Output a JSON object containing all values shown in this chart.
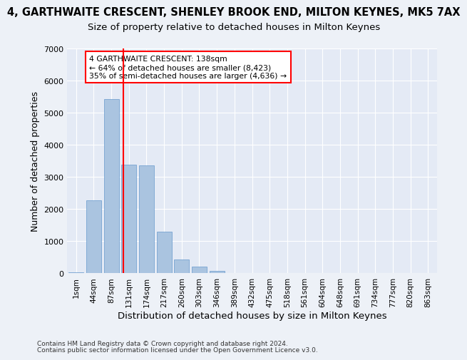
{
  "title": "4, GARTHWAITE CRESCENT, SHENLEY BROOK END, MILTON KEYNES, MK5 7AX",
  "subtitle": "Size of property relative to detached houses in Milton Keynes",
  "xlabel": "Distribution of detached houses by size in Milton Keynes",
  "ylabel": "Number of detached properties",
  "footnote1": "Contains HM Land Registry data © Crown copyright and database right 2024.",
  "footnote2": "Contains public sector information licensed under the Open Government Licence v3.0.",
  "bin_labels": [
    "1sqm",
    "44sqm",
    "87sqm",
    "131sqm",
    "174sqm",
    "217sqm",
    "260sqm",
    "303sqm",
    "346sqm",
    "389sqm",
    "432sqm",
    "475sqm",
    "518sqm",
    "561sqm",
    "604sqm",
    "648sqm",
    "691sqm",
    "734sqm",
    "777sqm",
    "820sqm",
    "863sqm"
  ],
  "bar_values": [
    30,
    2280,
    5430,
    3380,
    3350,
    1300,
    430,
    220,
    80,
    20,
    0,
    0,
    0,
    0,
    0,
    0,
    0,
    0,
    0,
    0,
    0
  ],
  "bar_color": "#aac4e0",
  "bar_edge_color": "#6699cc",
  "vline_position": 2.67,
  "vline_color": "red",
  "annotation_text_line1": "4 GARTHWAITE CRESCENT: 138sqm",
  "annotation_text_line2": "← 64% of detached houses are smaller (8,423)",
  "annotation_text_line3": "35% of semi-detached houses are larger (4,636) →",
  "ylim": [
    0,
    7000
  ],
  "yticks": [
    0,
    1000,
    2000,
    3000,
    4000,
    5000,
    6000,
    7000
  ],
  "bg_color": "#edf1f7",
  "plot_bg_color": "#e4eaf5",
  "grid_color": "white",
  "title_fontsize": 10.5,
  "subtitle_fontsize": 9.5,
  "axis_label_fontsize": 9,
  "tick_fontsize": 7.5,
  "footnote_fontsize": 6.5
}
